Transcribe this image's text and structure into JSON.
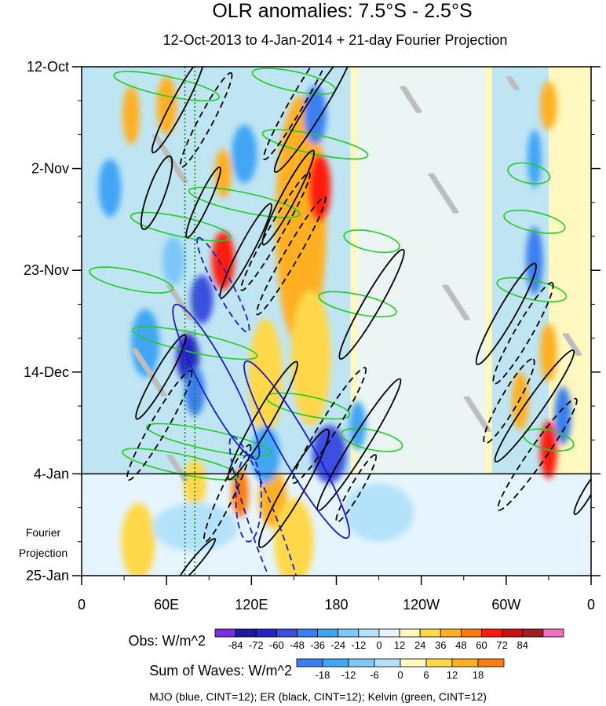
{
  "chart_data": {
    "type": "heatmap",
    "title": "OLR anomalies: 7.5°S - 2.5°S",
    "subtitle": "12-Oct-2013 to 4-Jan-2014 + 21-day Fourier Projection",
    "x_ticks": [
      "0",
      "60E",
      "120E",
      "180",
      "120W",
      "60W",
      "0"
    ],
    "x_tick_lon": [
      0,
      60,
      120,
      180,
      240,
      300,
      360
    ],
    "y_ticks": [
      "12-Oct",
      "2-Nov",
      "23-Nov",
      "14-Dec",
      "4-Jan",
      "25-Jan"
    ],
    "y_tick_day": [
      0,
      21,
      42,
      63,
      84,
      105
    ],
    "xlim": [
      0,
      360
    ],
    "ylim_days": [
      0,
      105
    ],
    "projection_start_day": 84,
    "projection_label_line1": "Fourier",
    "projection_label_line2": "Projection",
    "reference_lines_lon": [
      73,
      80
    ],
    "obs_colorbar": {
      "label": "Obs: W/m^2",
      "ticks": [
        "-84",
        "-72",
        "-60",
        "-48",
        "-36",
        "-24",
        "-12",
        "0",
        "12",
        "24",
        "36",
        "48",
        "60",
        "72",
        "84"
      ],
      "colors": [
        "#7b2ee0",
        "#1a1aa6",
        "#2626c8",
        "#3a4fe0",
        "#3a7ff0",
        "#40a6f5",
        "#7cc8f8",
        "#b4e2fb",
        "#e6f5fd",
        "#fff8c0",
        "#ffd84a",
        "#ffb020",
        "#ff7a10",
        "#ff1a10",
        "#cc1010",
        "#a02020",
        "#f070c0"
      ]
    },
    "waves_colorbar": {
      "label": "Sum of Waves: W/m^2",
      "ticks": [
        "-18",
        "-12",
        "-6",
        "0",
        "6",
        "12",
        "18"
      ],
      "colors": [
        "#3a7ff0",
        "#40a6f5",
        "#7cc8f8",
        "#b4e2fb",
        "#fff8c0",
        "#ffd84a",
        "#ffb020",
        "#ff7a10"
      ]
    },
    "legend_note": "MJO (blue, CINT=12); ER (black, CINT=12); Kelvin (green, CINT=12)",
    "series": [
      {
        "name": "MJO",
        "color": "#1a1acc"
      },
      {
        "name": "ER",
        "color": "#000000"
      },
      {
        "name": "Kelvin",
        "color": "#22cc22"
      }
    ],
    "contours": {
      "MJO": [
        {
          "lon": 100,
          "day": 45,
          "rx": 6,
          "ry": 11,
          "rot": -28,
          "dashed": true
        },
        {
          "lon": 95,
          "day": 65,
          "rx": 11,
          "ry": 18,
          "rot": -28,
          "dashed": false
        },
        {
          "lon": 152,
          "day": 79,
          "rx": 11,
          "ry": 21,
          "rot": -30,
          "dashed": false
        },
        {
          "lon": 132,
          "day": 97,
          "rx": 10,
          "ry": 22,
          "rot": -20,
          "dashed": true
        },
        {
          "lon": 118,
          "day": 89,
          "rx": 9,
          "ry": 9,
          "rot": 0,
          "dashed": true
        }
      ],
      "ER": [
        {
          "lon": 68,
          "day": 8,
          "rx": 5,
          "ry": 11,
          "rot": 28,
          "dashed": false
        },
        {
          "lon": 88,
          "day": 11,
          "rx": 5,
          "ry": 11,
          "rot": 28,
          "dashed": true
        },
        {
          "lon": 53,
          "day": 26,
          "rx": 6,
          "ry": 8,
          "rot": 20,
          "dashed": false
        },
        {
          "lon": 86,
          "day": 28,
          "rx": 4,
          "ry": 8,
          "rot": 25,
          "dashed": false
        },
        {
          "lon": 116,
          "day": 38,
          "rx": 5,
          "ry": 11,
          "rot": 28,
          "dashed": false
        },
        {
          "lon": 137,
          "day": 34,
          "rx": 5,
          "ry": 14,
          "rot": 30,
          "dashed": true
        },
        {
          "lon": 148,
          "day": 39,
          "rx": 5,
          "ry": 14,
          "rot": 30,
          "dashed": true
        },
        {
          "lon": 153,
          "day": 7,
          "rx": 5,
          "ry": 14,
          "rot": 30,
          "dashed": true
        },
        {
          "lon": 164,
          "day": 9,
          "rx": 6,
          "ry": 15,
          "rot": 32,
          "dashed": false
        },
        {
          "lon": 146,
          "day": 27,
          "rx": 5,
          "ry": 11,
          "rot": 28,
          "dashed": false
        },
        {
          "lon": 56,
          "day": 64,
          "rx": 5,
          "ry": 10,
          "rot": 30,
          "dashed": false
        },
        {
          "lon": 55,
          "day": 74,
          "rx": 6,
          "ry": 13,
          "rot": 30,
          "dashed": true
        },
        {
          "lon": 128,
          "day": 73,
          "rx": 6,
          "ry": 14,
          "rot": 30,
          "dashed": false
        },
        {
          "lon": 150,
          "day": 87,
          "rx": 7,
          "ry": 14,
          "rot": 30,
          "dashed": false
        },
        {
          "lon": 175,
          "day": 74,
          "rx": 6,
          "ry": 14,
          "rot": 32,
          "dashed": true
        },
        {
          "lon": 196,
          "day": 78,
          "rx": 6,
          "ry": 16,
          "rot": 32,
          "dashed": false
        },
        {
          "lon": 103,
          "day": 88,
          "rx": 5,
          "ry": 11,
          "rot": 25,
          "dashed": true
        },
        {
          "lon": 81,
          "day": 102,
          "rx": 3,
          "ry": 6,
          "rot": 40,
          "dashed": false
        },
        {
          "lon": 300,
          "day": 51,
          "rx": 6,
          "ry": 12,
          "rot": 30,
          "dashed": false
        },
        {
          "lon": 312,
          "day": 55,
          "rx": 6,
          "ry": 12,
          "rot": 30,
          "dashed": true
        },
        {
          "lon": 302,
          "day": 69,
          "rx": 6,
          "ry": 10,
          "rot": 30,
          "dashed": true
        },
        {
          "lon": 320,
          "day": 70,
          "rx": 6,
          "ry": 14,
          "rot": 35,
          "dashed": false
        },
        {
          "lon": 322,
          "day": 80,
          "rx": 6,
          "ry": 14,
          "rot": 35,
          "dashed": true
        },
        {
          "lon": 194,
          "day": 87,
          "rx": 4,
          "ry": 8,
          "rot": 30,
          "dashed": true
        },
        {
          "lon": 357,
          "day": 88,
          "rx": 3,
          "ry": 5,
          "rot": 30,
          "dashed": false
        },
        {
          "lon": 205,
          "day": 49,
          "rx": 6,
          "ry": 13,
          "rot": 30,
          "dashed": false
        }
      ],
      "Kelvin": [
        {
          "lon": 60,
          "day": 4,
          "rx": 38,
          "ry": 2,
          "rot": 12
        },
        {
          "lon": 150,
          "day": 3,
          "rx": 30,
          "ry": 2,
          "rot": 12
        },
        {
          "lon": 165,
          "day": 16,
          "rx": 38,
          "ry": 2,
          "rot": 12
        },
        {
          "lon": 115,
          "day": 28,
          "rx": 40,
          "ry": 2,
          "rot": 12
        },
        {
          "lon": 70,
          "day": 33,
          "rx": 36,
          "ry": 2,
          "rot": 12
        },
        {
          "lon": 205,
          "day": 36,
          "rx": 20,
          "ry": 2,
          "rot": 12
        },
        {
          "lon": 35,
          "day": 44,
          "rx": 30,
          "ry": 2,
          "rot": 12
        },
        {
          "lon": 195,
          "day": 49,
          "rx": 28,
          "ry": 2,
          "rot": 12
        },
        {
          "lon": 80,
          "day": 57,
          "rx": 45,
          "ry": 2,
          "rot": 12
        },
        {
          "lon": 160,
          "day": 70,
          "rx": 30,
          "ry": 2,
          "rot": 12
        },
        {
          "lon": 90,
          "day": 77,
          "rx": 45,
          "ry": 2,
          "rot": 12
        },
        {
          "lon": 205,
          "day": 77,
          "rx": 22,
          "ry": 2,
          "rot": 12
        },
        {
          "lon": 320,
          "day": 32,
          "rx": 22,
          "ry": 2,
          "rot": 12
        },
        {
          "lon": 318,
          "day": 46,
          "rx": 25,
          "ry": 2,
          "rot": 12
        },
        {
          "lon": 330,
          "day": 77,
          "rx": 18,
          "ry": 2,
          "rot": 12
        },
        {
          "lon": 316,
          "day": 22,
          "rx": 15,
          "ry": 2,
          "rot": 12
        },
        {
          "lon": 70,
          "day": 82,
          "rx": 42,
          "ry": 2,
          "rot": 12
        }
      ]
    },
    "anomaly_blobs": [
      {
        "lon": 155,
        "day": 32,
        "rx": 18,
        "ry": 26,
        "v": 36
      },
      {
        "lon": 162,
        "day": 60,
        "rx": 14,
        "ry": 14,
        "v": 30
      },
      {
        "lon": 130,
        "day": 64,
        "rx": 12,
        "ry": 12,
        "v": 30
      },
      {
        "lon": 100,
        "day": 40,
        "rx": 8,
        "ry": 6,
        "v": 60
      },
      {
        "lon": 60,
        "day": 8,
        "rx": 7,
        "ry": 6,
        "v": 36
      },
      {
        "lon": 35,
        "day": 10,
        "rx": 6,
        "ry": 6,
        "v": 36
      },
      {
        "lon": 100,
        "day": 22,
        "rx": 6,
        "ry": 5,
        "v": 36
      },
      {
        "lon": 168,
        "day": 25,
        "rx": 8,
        "ry": 7,
        "v": 60
      },
      {
        "lon": 135,
        "day": 89,
        "rx": 10,
        "ry": 6,
        "v": 36
      },
      {
        "lon": 112,
        "day": 88,
        "rx": 6,
        "ry": 5,
        "v": 48
      },
      {
        "lon": 150,
        "day": 98,
        "rx": 14,
        "ry": 9,
        "v": 24
      },
      {
        "lon": 40,
        "day": 98,
        "rx": 12,
        "ry": 8,
        "v": 24
      },
      {
        "lon": 330,
        "day": 79,
        "rx": 6,
        "ry": 6,
        "v": 60
      },
      {
        "lon": 330,
        "day": 59,
        "rx": 6,
        "ry": 6,
        "v": 36
      },
      {
        "lon": 310,
        "day": 69,
        "rx": 6,
        "ry": 6,
        "v": 36
      },
      {
        "lon": 330,
        "day": 8,
        "rx": 6,
        "ry": 5,
        "v": 36
      },
      {
        "lon": 80,
        "day": 86,
        "rx": 8,
        "ry": 5,
        "v": 24
      },
      {
        "lon": 75,
        "day": 60,
        "rx": 8,
        "ry": 5,
        "v": -72
      },
      {
        "lon": 85,
        "day": 48,
        "rx": 8,
        "ry": 5,
        "v": -60
      },
      {
        "lon": 175,
        "day": 80,
        "rx": 12,
        "ry": 6,
        "v": -60
      },
      {
        "lon": 165,
        "day": 10,
        "rx": 8,
        "ry": 6,
        "v": -48
      },
      {
        "lon": 80,
        "day": 67,
        "rx": 7,
        "ry": 5,
        "v": -48
      },
      {
        "lon": 130,
        "day": 80,
        "rx": 10,
        "ry": 6,
        "v": -36
      },
      {
        "lon": 20,
        "day": 25,
        "rx": 8,
        "ry": 6,
        "v": -36
      },
      {
        "lon": 45,
        "day": 57,
        "rx": 10,
        "ry": 7,
        "v": -36
      },
      {
        "lon": 115,
        "day": 18,
        "rx": 9,
        "ry": 6,
        "v": -36
      },
      {
        "lon": 320,
        "day": 40,
        "rx": 6,
        "ry": 7,
        "v": -48
      },
      {
        "lon": 340,
        "day": 72,
        "rx": 6,
        "ry": 6,
        "v": -48
      },
      {
        "lon": 320,
        "day": 19,
        "rx": 5,
        "ry": 6,
        "v": -36
      },
      {
        "lon": 195,
        "day": 74,
        "rx": 6,
        "ry": 5,
        "v": -36
      },
      {
        "lon": 65,
        "day": 40,
        "rx": 8,
        "ry": 5,
        "v": -24
      },
      {
        "lon": 210,
        "day": 92,
        "rx": 25,
        "ry": 6,
        "v": -12
      },
      {
        "lon": 80,
        "day": 95,
        "rx": 30,
        "ry": 5,
        "v": -12
      }
    ],
    "missing_streaks": [
      {
        "lon": 50,
        "day": 14,
        "len": 22
      },
      {
        "lon": 60,
        "day": 45,
        "len": 16
      },
      {
        "lon": 35,
        "day": 58,
        "len": 22
      },
      {
        "lon": 60,
        "day": 80,
        "len": 12
      },
      {
        "lon": 225,
        "day": 4,
        "len": 12
      },
      {
        "lon": 245,
        "day": 22,
        "len": 18
      },
      {
        "lon": 255,
        "day": 45,
        "len": 16
      },
      {
        "lon": 270,
        "day": 68,
        "len": 16
      },
      {
        "lon": 300,
        "day": 2,
        "len": 6
      },
      {
        "lon": 340,
        "day": 55,
        "len": 10
      }
    ]
  }
}
